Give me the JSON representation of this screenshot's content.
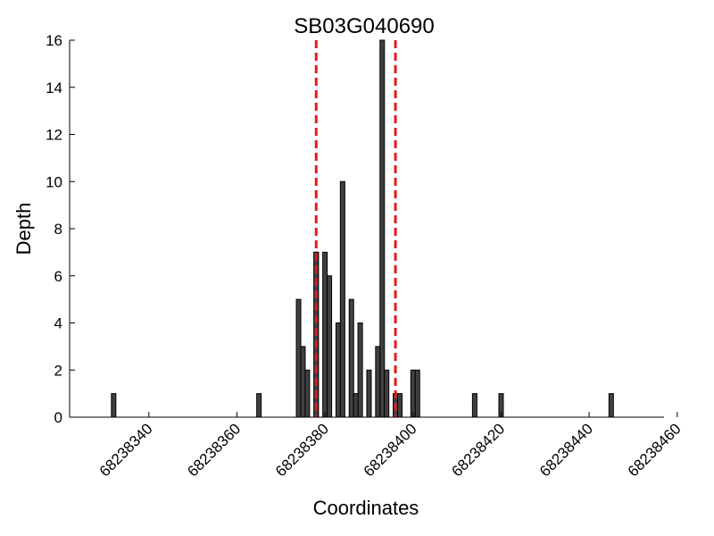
{
  "chart_data": {
    "type": "bar",
    "title": "SB03G040690",
    "xlabel": "Coordinates",
    "ylabel": "Depth",
    "xlim": [
      68238322,
      68238457
    ],
    "ylim": [
      0,
      16
    ],
    "x_ticks": [
      "68238340",
      "68238360",
      "68238380",
      "68238400",
      "68238420",
      "68238440",
      "68238460"
    ],
    "y_ticks": [
      "0",
      "2",
      "4",
      "6",
      "8",
      "10",
      "12",
      "14",
      "16"
    ],
    "grid": false,
    "bar_color": "#404040",
    "bar_edge_color": "#000000",
    "vline_color": "#e31a1c",
    "series": [
      {
        "x": [
          68238332,
          68238365,
          68238374,
          68238375,
          68238376,
          68238378,
          68238378,
          68238380,
          68238381,
          68238383,
          68238384,
          68238386,
          68238387,
          68238388,
          68238390,
          68238392,
          68238393,
          68238394,
          68238396,
          68238397,
          68238400,
          68238401,
          68238414,
          68238420,
          68238445
        ],
        "values": [
          1,
          1,
          5,
          3,
          2,
          7,
          7,
          7,
          6,
          4,
          10,
          5,
          1,
          4,
          2,
          3,
          16,
          2,
          1,
          1,
          2,
          2,
          1,
          1,
          1
        ]
      }
    ],
    "vlines": [
      68238378,
      68238396
    ]
  }
}
